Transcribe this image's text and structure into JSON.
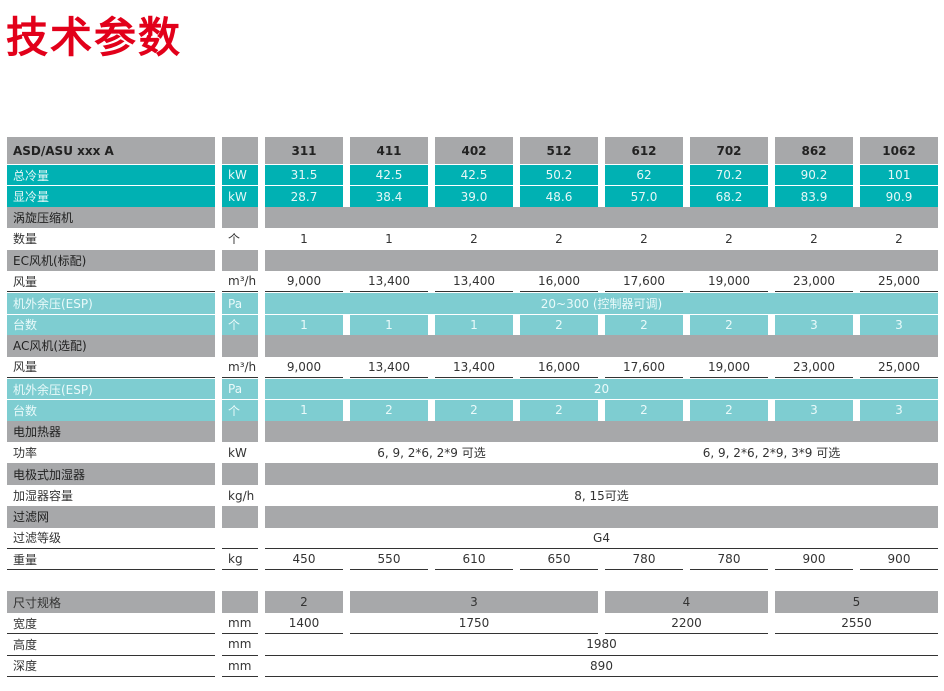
{
  "title": "技术参数",
  "colors": {
    "title": "#e2001a",
    "teal": "#00b1b3",
    "light_teal": "#7ecdd1",
    "gray": "#a7a8aa"
  },
  "table": {
    "rows": [
      {
        "style": "gray hdr",
        "label": "ASD/ASU xxx A",
        "unit": "",
        "cells": [
          {
            "t": "311"
          },
          {
            "t": "411"
          },
          {
            "t": "402"
          },
          {
            "t": "512"
          },
          {
            "t": "612"
          },
          {
            "t": "702"
          },
          {
            "t": "862"
          },
          {
            "t": "1062"
          }
        ]
      },
      {
        "style": "teal",
        "label": "总冷量",
        "unit": "kW",
        "cells": [
          {
            "t": "31.5"
          },
          {
            "t": "42.5"
          },
          {
            "t": "42.5"
          },
          {
            "t": "50.2"
          },
          {
            "t": "62"
          },
          {
            "t": "70.2"
          },
          {
            "t": "90.2"
          },
          {
            "t": "101"
          }
        ]
      },
      {
        "style": "teal",
        "label": "显冷量",
        "unit": "kW",
        "cells": [
          {
            "t": "28.7"
          },
          {
            "t": "38.4"
          },
          {
            "t": "39.0"
          },
          {
            "t": "48.6"
          },
          {
            "t": "57.0"
          },
          {
            "t": "68.2"
          },
          {
            "t": "83.9"
          },
          {
            "t": "90.9"
          }
        ]
      },
      {
        "style": "sect",
        "label": "涡旋压缩机",
        "unit": "",
        "cells": [
          {
            "t": "",
            "span": 8
          }
        ]
      },
      {
        "style": "plain",
        "label": "数量",
        "unit": "个",
        "cells": [
          {
            "t": "1"
          },
          {
            "t": "1"
          },
          {
            "t": "2"
          },
          {
            "t": "2"
          },
          {
            "t": "2"
          },
          {
            "t": "2"
          },
          {
            "t": "2"
          },
          {
            "t": "2"
          }
        ]
      },
      {
        "style": "sect",
        "label": "EC风机(标配)",
        "unit": "",
        "cells": [
          {
            "t": "",
            "span": 8
          }
        ]
      },
      {
        "style": "line",
        "label": "风量",
        "unit": "m³/h",
        "cells": [
          {
            "t": "9,000"
          },
          {
            "t": "13,400"
          },
          {
            "t": "13,400"
          },
          {
            "t": "16,000"
          },
          {
            "t": "17,600"
          },
          {
            "t": "19,000"
          },
          {
            "t": "23,000"
          },
          {
            "t": "25,000"
          }
        ]
      },
      {
        "style": "lteal",
        "label": "机外余压(ESP)",
        "unit": "Pa",
        "cells": [
          {
            "t": "20~300 (控制器可调)",
            "span": 8
          }
        ]
      },
      {
        "style": "lteal",
        "label": "台数",
        "unit": "个",
        "cells": [
          {
            "t": "1"
          },
          {
            "t": "1"
          },
          {
            "t": "1"
          },
          {
            "t": "2"
          },
          {
            "t": "2"
          },
          {
            "t": "2"
          },
          {
            "t": "3"
          },
          {
            "t": "3"
          }
        ]
      },
      {
        "style": "sect",
        "label": "AC风机(选配)",
        "unit": "",
        "cells": [
          {
            "t": "",
            "span": 8
          }
        ]
      },
      {
        "style": "line",
        "label": "风量",
        "unit": "m³/h",
        "cells": [
          {
            "t": "9,000"
          },
          {
            "t": "13,400"
          },
          {
            "t": "13,400"
          },
          {
            "t": "16,000"
          },
          {
            "t": "17,600"
          },
          {
            "t": "19,000"
          },
          {
            "t": "23,000"
          },
          {
            "t": "25,000"
          }
        ]
      },
      {
        "style": "lteal",
        "label": "机外余压(ESP)",
        "unit": "Pa",
        "cells": [
          {
            "t": "20",
            "span": 8
          }
        ]
      },
      {
        "style": "lteal",
        "label": "台数",
        "unit": "个",
        "cells": [
          {
            "t": "1"
          },
          {
            "t": "2"
          },
          {
            "t": "2"
          },
          {
            "t": "2"
          },
          {
            "t": "2"
          },
          {
            "t": "2"
          },
          {
            "t": "3"
          },
          {
            "t": "3"
          }
        ]
      },
      {
        "style": "sect",
        "label": "电加热器",
        "unit": "",
        "cells": [
          {
            "t": "",
            "span": 8
          }
        ]
      },
      {
        "style": "plain",
        "label": "功率",
        "unit": "kW",
        "cells": [
          {
            "t": "6, 9, 2*6, 2*9 可选",
            "span": 4
          },
          {
            "t": "6, 9, 2*6, 2*9, 3*9 可选",
            "span": 4
          }
        ]
      },
      {
        "style": "sect",
        "label": "电极式加湿器",
        "unit": "",
        "cells": [
          {
            "t": "",
            "span": 8
          }
        ]
      },
      {
        "style": "plain",
        "label": "加湿器容量",
        "unit": "kg/h",
        "cells": [
          {
            "t": "8, 15可选",
            "span": 8
          }
        ]
      },
      {
        "style": "sect",
        "label": "过滤网",
        "unit": "",
        "cells": [
          {
            "t": "",
            "span": 8
          }
        ]
      },
      {
        "style": "line",
        "label": "过滤等级",
        "unit": "",
        "cells": [
          {
            "t": "G4",
            "span": 8
          }
        ]
      },
      {
        "style": "line",
        "label": "重量",
        "unit": "kg",
        "cells": [
          {
            "t": "450"
          },
          {
            "t": "550"
          },
          {
            "t": "610"
          },
          {
            "t": "650"
          },
          {
            "t": "780"
          },
          {
            "t": "780"
          },
          {
            "t": "900"
          },
          {
            "t": "900"
          }
        ]
      }
    ],
    "dimension_rows": [
      {
        "style": "gray",
        "label": "尺寸规格",
        "unit": "",
        "cells": [
          {
            "t": "2"
          },
          {
            "t": "3",
            "span": 3
          },
          {
            "t": "4",
            "span": 2
          },
          {
            "t": "5",
            "span": 2
          }
        ]
      },
      {
        "style": "line",
        "label": "宽度",
        "unit": "mm",
        "cells": [
          {
            "t": "1400"
          },
          {
            "t": "1750",
            "span": 3
          },
          {
            "t": "2200",
            "span": 2
          },
          {
            "t": "2550",
            "span": 2
          }
        ]
      },
      {
        "style": "line",
        "label": "高度",
        "unit": "mm",
        "cells": [
          {
            "t": "1980",
            "span": 8
          }
        ]
      },
      {
        "style": "line",
        "label": "深度",
        "unit": "mm",
        "cells": [
          {
            "t": "890",
            "span": 8
          }
        ]
      }
    ]
  }
}
